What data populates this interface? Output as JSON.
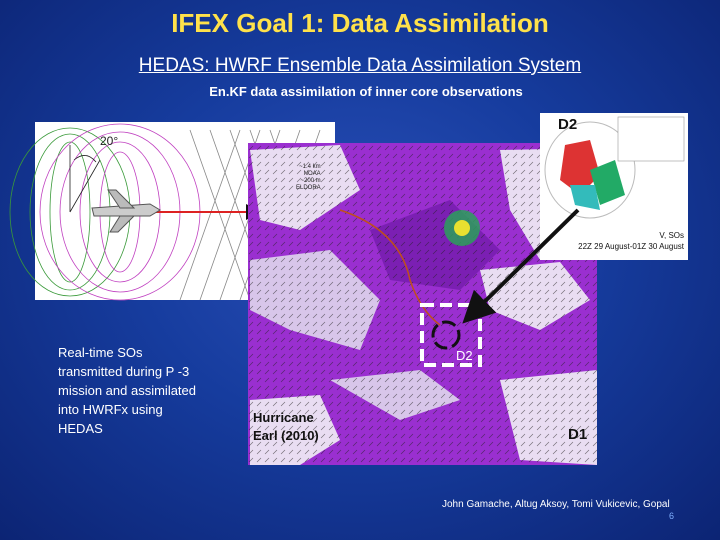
{
  "slide": {
    "title": "IFEX Goal 1: Data Assimilation",
    "subtitle": "HEDAS: HWRF Ensemble Data Assimilation System",
    "description": "En.KF data assimilation of inner core observations",
    "radar_figure": {
      "angle_label": "20°",
      "labels": [
        "~1.4 km",
        "NOAA",
        "~200 m",
        "ELDORA"
      ]
    },
    "inset": {
      "domain_label": "D2",
      "variable": "V, SOs",
      "time_range": "22Z 29 August-01Z 30 August"
    },
    "map": {
      "domain_inner": "D2",
      "domain_outer": "D1",
      "storm_label": "Hurricane Earl (2010)"
    },
    "note": "Real-time SOs transmitted during P -3 mission and assimilated into HWRFx using HEDAS",
    "authors": "John Gamache, Altug Aksoy, Tomi Vukicevic, Gopal",
    "page_number": "6"
  }
}
